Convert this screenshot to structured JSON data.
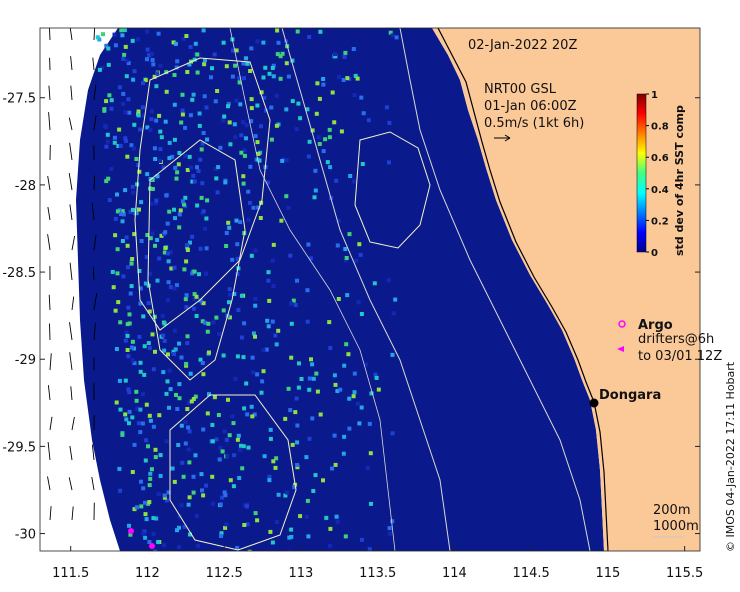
{
  "map": {
    "date_label": "02-Jan-2022 20Z",
    "current_source": "NRT00 GSL",
    "current_time": "01-Jan 06:00Z",
    "current_scale": "0.5m/s (1kt 6h)",
    "town": "Dongara",
    "contour_labels": [
      "200m",
      "1000m"
    ],
    "credit": "© IMOS 04-Jan-2022 17:11 Hobart",
    "colors": {
      "land": "#fbc898",
      "ocean": "#0a1a8c",
      "argo": "#ff00ff",
      "drifter": "#ff00ff"
    }
  },
  "legend": {
    "argo_label": "Argo",
    "drifter_label_1": "drifters@6h",
    "drifter_label_2": "to 03/01 12Z"
  },
  "colorbar": {
    "title": "std dev of 4hr SST comp",
    "ticks": [
      "0",
      "0.2",
      "0.4",
      "0.6",
      "0.8",
      "1"
    ],
    "range": [
      0,
      1
    ],
    "colormap": "jet"
  },
  "axes": {
    "x_ticks": [
      "111.5",
      "112",
      "112.5",
      "113",
      "113.5",
      "114",
      "114.5",
      "115",
      "115.5"
    ],
    "x_values": [
      111.5,
      112,
      112.5,
      113,
      113.5,
      114,
      114.5,
      115,
      115.5
    ],
    "y_ticks": [
      "-27.5",
      "-28",
      "-28.5",
      "-29",
      "-29.5",
      "-30"
    ],
    "y_values": [
      -27.5,
      -28,
      -28.5,
      -29,
      -29.5,
      -30
    ],
    "x_range": [
      111.3,
      115.6
    ],
    "y_range": [
      -30.1,
      -27.1
    ]
  }
}
